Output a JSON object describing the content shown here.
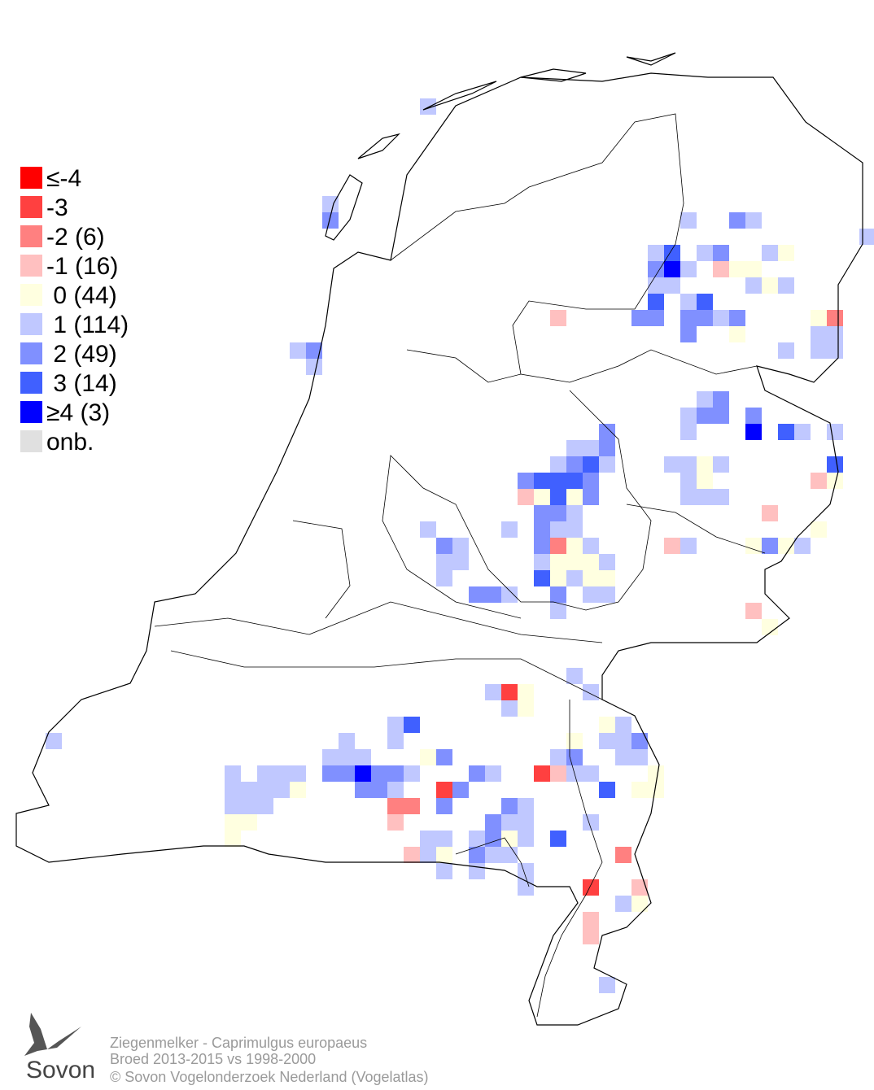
{
  "legend": {
    "items": [
      {
        "label": "≤-4",
        "color": "#ff0000"
      },
      {
        "label": "-3",
        "color": "#ff4040"
      },
      {
        "label": "-2 (6)",
        "color": "#ff8080"
      },
      {
        "label": "-1 (16)",
        "color": "#ffc0c0"
      },
      {
        "label": " 0 (44)",
        "color": "#ffffe0"
      },
      {
        "label": " 1 (114)",
        "color": "#c0c8ff"
      },
      {
        "label": " 2 (49)",
        "color": "#8090ff"
      },
      {
        "label": " 3 (14)",
        "color": "#4060ff"
      },
      {
        "label": "≥4 (3)",
        "color": "#0000ff"
      },
      {
        "label": "onb.",
        "color": "#e0e0e0"
      }
    ]
  },
  "footer": {
    "line1": "Ziegenmelker - Caprimulgus europaeus",
    "line2": "Broed 2013-2015 vs 1998-2000",
    "line3": "© Sovon Vogelonderzoek Nederland (Vogelatlas)"
  },
  "logo": {
    "text": "Sovon"
  }
}
